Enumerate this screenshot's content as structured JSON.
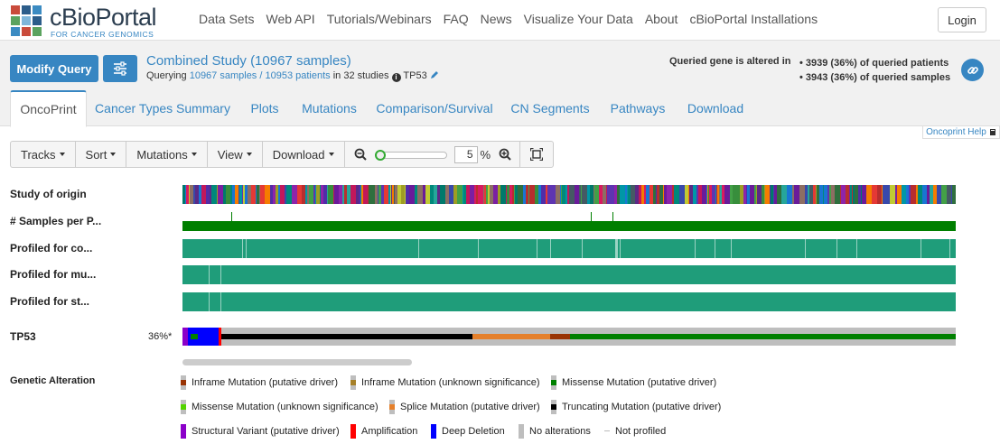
{
  "header": {
    "logo_title": "cBioPortal",
    "logo_sub": "FOR CANCER GENOMICS",
    "nav": [
      "Data Sets",
      "Web API",
      "Tutorials/Webinars",
      "FAQ",
      "News",
      "Visualize Your Data",
      "About",
      "cBioPortal Installations"
    ],
    "login_label": "Login"
  },
  "query": {
    "modify_label": "Modify Query",
    "study_title": "Combined Study (10967 samples)",
    "querying_prefix": "Querying",
    "samples_link": "10967 samples",
    "separator": " / ",
    "patients_link": "10953 patients",
    "in_studies": "in 32 studies",
    "gene": "TP53",
    "altered_label": "Queried gene is altered in",
    "altered_patients": "• 3939 (36%) of queried patients",
    "altered_samples": "• 3943 (36%) of queried samples"
  },
  "tabs": [
    "OncoPrint",
    "Cancer Types Summary",
    "Plots",
    "Mutations",
    "Comparison/Survival",
    "CN Segments",
    "Pathways",
    "Download"
  ],
  "active_tab": "OncoPrint",
  "oncoprint": {
    "help_label": "Oncoprint Help",
    "toolbar": [
      "Tracks",
      "Sort",
      "Mutations",
      "View",
      "Download"
    ],
    "zoom_value": "5",
    "zoom_unit": "%",
    "tracks": [
      "Study of origin",
      "# Samples per P...",
      "Profiled for co...",
      "Profiled for mu...",
      "Profiled for st..."
    ],
    "gene_track": "TP53",
    "gene_pct": "36%*",
    "legend_title": "Genetic Alteration",
    "legend": [
      {
        "label": "Inframe Mutation (putative driver)",
        "color": "#993404"
      },
      {
        "label": "Inframe Mutation (unknown significance)",
        "color": "#a68028"
      },
      {
        "label": "Missense Mutation (putative driver)",
        "color": "#008000"
      },
      {
        "label": "Missense Mutation (unknown significance)",
        "color": "#53d400"
      },
      {
        "label": "Splice Mutation (putative driver)",
        "color": "#e5802b"
      },
      {
        "label": "Truncating Mutation (putative driver)",
        "color": "#000000"
      },
      {
        "label": "Structural Variant (putative driver)",
        "color": "#8b00c9"
      },
      {
        "label": "Amplification",
        "color": "#ff0000"
      },
      {
        "label": "Deep Deletion",
        "color": "#0000ff"
      },
      {
        "label": "No alterations",
        "color": "#bebebe"
      },
      {
        "label": "Not profiled",
        "color": "#ffffff"
      }
    ]
  }
}
